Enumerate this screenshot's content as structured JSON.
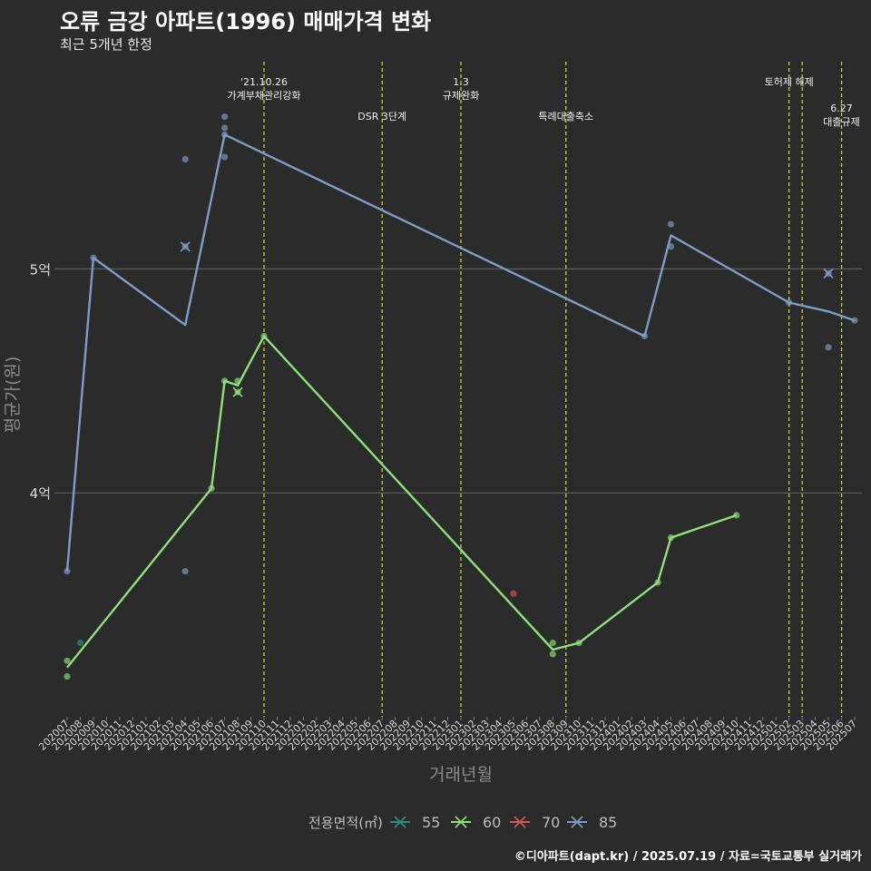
{
  "chart_data": {
    "type": "line",
    "title": "오류 금강 아파트(1996) 매매가격 변화",
    "subtitle": "최근 5개년 한정",
    "xlabel": "거래년월",
    "ylabel": "평균가(원)",
    "y_unit": "억원",
    "ylim": [
      3.0,
      5.95
    ],
    "y_ticks": [
      4,
      5
    ],
    "y_tick_labels": [
      "4억",
      "5억"
    ],
    "x_categories": [
      "202007",
      "202008",
      "202009",
      "202010",
      "202011",
      "202012",
      "202101",
      "202102",
      "202103",
      "202104",
      "202105",
      "202106",
      "202107",
      "202108",
      "202109",
      "202110",
      "202111",
      "202112",
      "202201",
      "202202",
      "202203",
      "202204",
      "202205",
      "202206",
      "202207",
      "202208",
      "202209",
      "202210",
      "202211",
      "202212",
      "202301",
      "202302",
      "202303",
      "202304",
      "202305",
      "202306",
      "202307",
      "202308",
      "202309",
      "202310",
      "202311",
      "202312",
      "202401",
      "202402",
      "202403",
      "202404",
      "202405",
      "202406",
      "202407",
      "202408",
      "202409",
      "202410",
      "202411",
      "202412",
      "202501",
      "202502",
      "202503",
      "202504",
      "202505",
      "202506",
      "202507"
    ],
    "legend": {
      "title": "전용면적(㎡)",
      "position": "bottom",
      "items": [
        {
          "label": "55",
          "color": "#2a8f86"
        },
        {
          "label": "60",
          "color": "#8fe07a"
        },
        {
          "label": "70",
          "color": "#d9555a"
        },
        {
          "label": "85",
          "color": "#7f9cc8"
        }
      ]
    },
    "events": [
      {
        "x": "202110",
        "lines": [
          "'21.10.26",
          "가계부채관리강화"
        ],
        "level": 0
      },
      {
        "x": "202207",
        "lines": [
          "DSR 3단계"
        ],
        "level": 1
      },
      {
        "x": "202301",
        "lines": [
          "1.3",
          "규제완화"
        ],
        "level": 0
      },
      {
        "x": "202309",
        "lines": [
          "특례대출축소"
        ],
        "level": 1
      },
      {
        "x": "202502",
        "lines": [
          "토허제 해제"
        ],
        "level": 0
      },
      {
        "x": "202503",
        "lines": [],
        "level": 0
      },
      {
        "x": "202506",
        "lines": [
          "6.27",
          "대출규제"
        ],
        "level": 2
      }
    ],
    "series": [
      {
        "name": "55",
        "color": "#2a8f86",
        "line": [],
        "points": [
          {
            "x": "202008",
            "y": 3.33
          }
        ],
        "crosses": []
      },
      {
        "name": "60",
        "color": "#8fe07a",
        "line": [
          {
            "x": "202007",
            "y": 3.22
          },
          {
            "x": "202106",
            "y": 4.02
          },
          {
            "x": "202107",
            "y": 4.5
          },
          {
            "x": "202108",
            "y": 4.48
          },
          {
            "x": "202110",
            "y": 4.7
          },
          {
            "x": "202308",
            "y": 3.3
          },
          {
            "x": "202310",
            "y": 3.33
          },
          {
            "x": "202404",
            "y": 3.6
          },
          {
            "x": "202405",
            "y": 3.8
          },
          {
            "x": "202410",
            "y": 3.9
          }
        ],
        "points": [
          {
            "x": "202007",
            "y": 3.25
          },
          {
            "x": "202007",
            "y": 3.18
          },
          {
            "x": "202106",
            "y": 4.02
          },
          {
            "x": "202107",
            "y": 4.5
          },
          {
            "x": "202108",
            "y": 4.5
          },
          {
            "x": "202110",
            "y": 4.7
          },
          {
            "x": "202308",
            "y": 3.33
          },
          {
            "x": "202308",
            "y": 3.28
          },
          {
            "x": "202310",
            "y": 3.33
          },
          {
            "x": "202404",
            "y": 3.6
          },
          {
            "x": "202405",
            "y": 3.8
          },
          {
            "x": "202410",
            "y": 3.9
          }
        ],
        "crosses": [
          {
            "x": "202108",
            "y": 4.45
          }
        ]
      },
      {
        "name": "70",
        "color": "#d9555a",
        "line": [],
        "points": [
          {
            "x": "202305",
            "y": 3.55
          }
        ],
        "crosses": []
      },
      {
        "name": "85",
        "color": "#7f9cc8",
        "line": [
          {
            "x": "202007",
            "y": 3.65
          },
          {
            "x": "202009",
            "y": 5.05
          },
          {
            "x": "202104",
            "y": 4.75
          },
          {
            "x": "202107",
            "y": 5.6
          },
          {
            "x": "202403",
            "y": 4.7
          },
          {
            "x": "202405",
            "y": 5.15
          },
          {
            "x": "202502",
            "y": 4.85
          },
          {
            "x": "202505",
            "y": 4.81
          },
          {
            "x": "202507",
            "y": 4.77
          }
        ],
        "points": [
          {
            "x": "202007",
            "y": 3.65
          },
          {
            "x": "202009",
            "y": 5.05
          },
          {
            "x": "202104",
            "y": 5.49
          },
          {
            "x": "202104",
            "y": 3.65
          },
          {
            "x": "202107",
            "y": 5.68
          },
          {
            "x": "202107",
            "y": 5.63
          },
          {
            "x": "202107",
            "y": 5.6
          },
          {
            "x": "202107",
            "y": 5.5
          },
          {
            "x": "202403",
            "y": 4.7
          },
          {
            "x": "202405",
            "y": 5.2
          },
          {
            "x": "202405",
            "y": 5.1
          },
          {
            "x": "202502",
            "y": 4.85
          },
          {
            "x": "202505",
            "y": 4.65
          },
          {
            "x": "202507",
            "y": 4.77
          }
        ],
        "crosses": [
          {
            "x": "202104",
            "y": 5.1
          },
          {
            "x": "202505",
            "y": 4.98
          }
        ]
      }
    ]
  },
  "caption": "©디아파트(dapt.kr) / 2025.07.19 / 자료=국토교통부 실거래가"
}
